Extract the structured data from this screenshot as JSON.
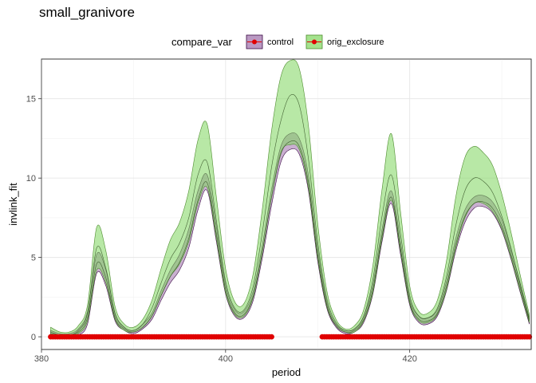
{
  "chart_data": {
    "type": "area",
    "title": "small_granivore",
    "xlabel": "period",
    "ylabel": "invlink_fit",
    "xlim": [
      380.0,
      433.2
    ],
    "ylim": [
      -0.8,
      17.5
    ],
    "xticks": [
      380,
      400,
      420
    ],
    "yticks": [
      0,
      5,
      10,
      15
    ],
    "grid": true,
    "legend": {
      "title": "compare_var",
      "position": "top",
      "entries": [
        "control",
        "orig_exclosure"
      ]
    },
    "colors": {
      "control_fill": "#9d6da9",
      "control_line": "#3b0a45",
      "orig_exclosure_fill": "#7dd65c",
      "orig_exclosure_line": "#4e8c2f",
      "points": "#e00000",
      "overlap_line": "#2e4a1e"
    },
    "series": [
      {
        "name": "control",
        "x": [
          381,
          382,
          383,
          384,
          385,
          386,
          387,
          388,
          389,
          390,
          391,
          392,
          393,
          394,
          395,
          396,
          397,
          398,
          399,
          400,
          401,
          402,
          403,
          404,
          405,
          406,
          407,
          408,
          409,
          410,
          411,
          412,
          413,
          414,
          415,
          416,
          417,
          418,
          419,
          420,
          421,
          422,
          423,
          424,
          425,
          426,
          427,
          428,
          429,
          430,
          431,
          432,
          433
        ],
        "fit": [
          0.2,
          0.1,
          0.1,
          0.3,
          1.2,
          4.6,
          3.7,
          1.2,
          0.5,
          0.3,
          0.6,
          1.3,
          2.6,
          3.8,
          4.7,
          6.2,
          8.6,
          9.7,
          6.5,
          3.0,
          1.5,
          1.4,
          2.6,
          5.4,
          8.8,
          11.5,
          12.3,
          12.0,
          9.7,
          5.2,
          2.0,
          0.7,
          0.3,
          0.4,
          1.1,
          3.0,
          6.4,
          8.8,
          5.6,
          2.2,
          1.1,
          1.0,
          1.5,
          3.2,
          5.8,
          7.6,
          8.4,
          8.5,
          8.1,
          7.0,
          5.2,
          3.1,
          1.0
        ],
        "lower": [
          0.0,
          0.0,
          0.0,
          0.1,
          0.8,
          4.0,
          3.2,
          1.0,
          0.4,
          0.2,
          0.5,
          1.1,
          2.3,
          3.4,
          4.2,
          5.6,
          8.0,
          9.2,
          6.0,
          2.7,
          1.3,
          1.2,
          2.3,
          5.0,
          8.3,
          11.0,
          11.8,
          11.5,
          9.2,
          4.8,
          1.8,
          0.6,
          0.2,
          0.3,
          0.9,
          2.7,
          6.0,
          8.4,
          5.2,
          2.0,
          0.9,
          0.8,
          1.3,
          2.9,
          5.4,
          7.2,
          8.1,
          8.2,
          7.8,
          6.7,
          4.9,
          2.8,
          0.8
        ],
        "upper": [
          0.4,
          0.2,
          0.2,
          0.5,
          1.6,
          5.2,
          4.2,
          1.4,
          0.6,
          0.4,
          0.8,
          1.5,
          2.9,
          4.2,
          5.2,
          6.8,
          9.2,
          10.2,
          7.0,
          3.3,
          1.7,
          1.6,
          2.9,
          5.8,
          9.3,
          12.0,
          12.8,
          12.5,
          10.2,
          5.6,
          2.2,
          0.8,
          0.4,
          0.5,
          1.3,
          3.3,
          6.8,
          9.2,
          6.0,
          2.4,
          1.3,
          1.2,
          1.7,
          3.5,
          6.2,
          8.0,
          8.8,
          8.9,
          8.5,
          7.4,
          5.5,
          3.4,
          1.2
        ]
      },
      {
        "name": "orig_exclosure",
        "x": [
          381,
          382,
          383,
          384,
          385,
          386,
          387,
          388,
          389,
          390,
          391,
          392,
          393,
          394,
          395,
          396,
          397,
          398,
          399,
          400,
          401,
          402,
          403,
          404,
          405,
          406,
          407,
          408,
          409,
          410,
          411,
          412,
          413,
          414,
          415,
          416,
          417,
          418,
          419,
          420,
          421,
          422,
          423,
          424,
          425,
          426,
          427,
          428,
          429,
          430,
          431,
          432,
          433
        ],
        "fit": [
          0.3,
          0.1,
          0.1,
          0.4,
          1.5,
          5.6,
          4.3,
          1.5,
          0.6,
          0.4,
          0.8,
          1.8,
          3.4,
          4.9,
          5.9,
          7.5,
          10.2,
          11.0,
          7.3,
          3.5,
          1.8,
          1.7,
          3.2,
          6.6,
          10.7,
          13.6,
          15.2,
          14.6,
          11.2,
          6.0,
          2.4,
          0.9,
          0.4,
          0.5,
          1.3,
          3.6,
          7.6,
          10.2,
          6.5,
          2.6,
          1.3,
          1.2,
          1.8,
          3.8,
          7.0,
          9.2,
          10.0,
          9.8,
          9.1,
          7.6,
          5.6,
          3.3,
          1.1
        ],
        "lower": [
          0.0,
          0.0,
          0.0,
          0.2,
          1.0,
          4.2,
          3.4,
          1.1,
          0.4,
          0.3,
          0.6,
          1.3,
          2.6,
          3.8,
          4.6,
          6.0,
          8.4,
          9.4,
          6.2,
          2.8,
          1.4,
          1.3,
          2.5,
          5.3,
          8.8,
          11.6,
          12.1,
          11.8,
          9.4,
          5.0,
          1.9,
          0.7,
          0.3,
          0.3,
          1.0,
          2.8,
          6.2,
          8.6,
          5.4,
          2.1,
          1.0,
          0.9,
          1.4,
          3.0,
          5.6,
          7.5,
          8.4,
          8.4,
          7.9,
          6.8,
          5.0,
          2.9,
          0.9
        ],
        "upper": [
          0.6,
          0.3,
          0.3,
          0.7,
          2.0,
          6.9,
          5.4,
          1.9,
          0.8,
          0.6,
          1.1,
          2.3,
          4.3,
          6.1,
          7.2,
          9.2,
          12.4,
          13.4,
          8.8,
          4.3,
          2.2,
          2.1,
          4.0,
          8.1,
          13.0,
          16.4,
          17.4,
          16.9,
          13.3,
          7.2,
          2.9,
          1.1,
          0.5,
          0.7,
          1.7,
          4.5,
          9.3,
          12.8,
          7.9,
          3.2,
          1.6,
          1.5,
          2.3,
          4.8,
          8.8,
          11.3,
          12.0,
          11.6,
          10.8,
          9.0,
          6.6,
          3.9,
          1.4
        ]
      }
    ],
    "points": {
      "name": "observed",
      "y": 0,
      "segments": [
        [
          381,
          405
        ],
        [
          410.5,
          433
        ]
      ]
    }
  }
}
